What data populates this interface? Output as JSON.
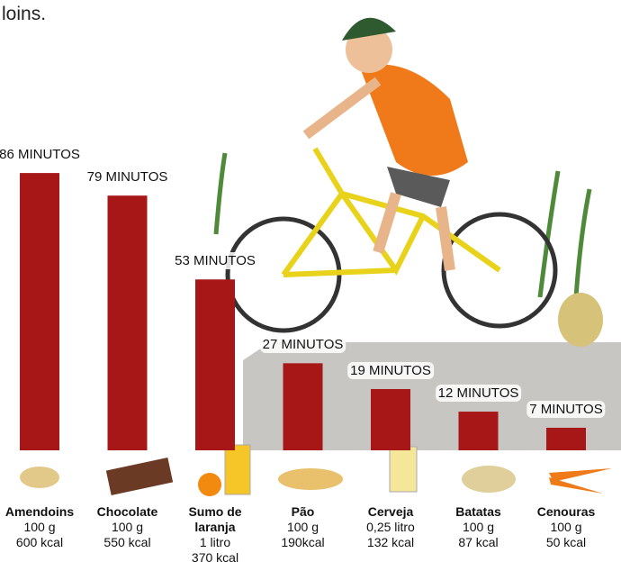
{
  "chart_data": {
    "type": "bar",
    "annotation": "loins.",
    "categories": [
      "Amendoins",
      "Chocolate",
      "Sumo de laranja",
      "Pão",
      "Cerveja",
      "Batatas",
      "Cenouras"
    ],
    "details": [
      [
        "100 g",
        "600 kcal"
      ],
      [
        "100 g",
        "550 kcal"
      ],
      [
        "1 litro",
        "370 kcal"
      ],
      [
        "100 g",
        "190kcal"
      ],
      [
        "0,25 litro",
        "132 kcal"
      ],
      [
        "100 g",
        "87 kcal"
      ],
      [
        "100 g",
        "50 kcal"
      ]
    ],
    "values": [
      86,
      79,
      53,
      27,
      19,
      12,
      7
    ],
    "value_labels": [
      "86 MINUTOS",
      "79 MINUTOS",
      "53 MINUTOS",
      "27 MINUTOS",
      "19 MINUTOS",
      "12 MINUTOS",
      "7 MINUTOS"
    ],
    "color": "#a81717"
  }
}
